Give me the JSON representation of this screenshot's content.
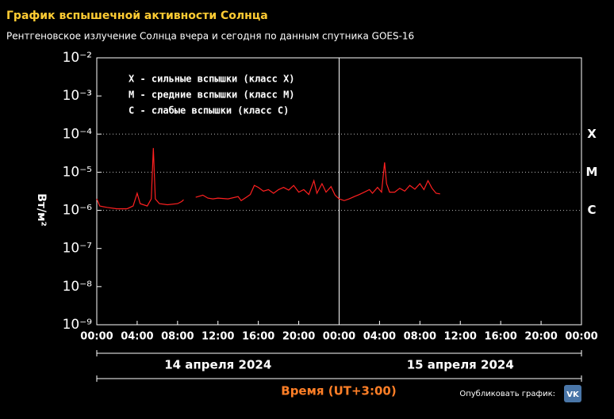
{
  "chart_data": {
    "type": "line",
    "title": "График вспышечной активности Солнца",
    "subtitle": "Рентгеновское излучение Солнца вчера и сегодня по данным спутника GOES-16",
    "ylabel": "Вт/м²",
    "xlabel": "Время (UT+3:00)",
    "log_scale": true,
    "ylim": [
      1e-09,
      0.01
    ],
    "yticks": [
      {
        "value": 1e-09,
        "label": "10⁻⁹"
      },
      {
        "value": 1e-08,
        "label": "10⁻⁸"
      },
      {
        "value": 1e-07,
        "label": "10⁻⁷"
      },
      {
        "value": 1e-06,
        "label": "10⁻⁶"
      },
      {
        "value": 1e-05,
        "label": "10⁻⁵"
      },
      {
        "value": 0.0001,
        "label": "10⁻⁴"
      },
      {
        "value": 0.001,
        "label": "10⁻³"
      },
      {
        "value": 0.01,
        "label": "10⁻²"
      }
    ],
    "xlim": [
      0,
      48
    ],
    "xticks": [
      {
        "value": 0,
        "label": "00:00"
      },
      {
        "value": 4,
        "label": "04:00"
      },
      {
        "value": 8,
        "label": "08:00"
      },
      {
        "value": 12,
        "label": "12:00"
      },
      {
        "value": 16,
        "label": "16:00"
      },
      {
        "value": 20,
        "label": "20:00"
      },
      {
        "value": 24,
        "label": "00:00"
      },
      {
        "value": 28,
        "label": "04:00"
      },
      {
        "value": 32,
        "label": "08:00"
      },
      {
        "value": 36,
        "label": "12:00"
      },
      {
        "value": 40,
        "label": "16:00"
      },
      {
        "value": 44,
        "label": "20:00"
      },
      {
        "value": 48,
        "label": "00:00"
      }
    ],
    "day_boundary": 24,
    "days": [
      "14 апреля 2024",
      "15 апреля 2024"
    ],
    "class_labels": [
      {
        "value": 0.0001,
        "label": "X"
      },
      {
        "value": 1e-05,
        "label": "M"
      },
      {
        "value": 1e-06,
        "label": "C"
      }
    ],
    "annotations": [
      "X - сильные вспышки (класс X)",
      "M - средние вспышки (класс M)",
      "C - слабые вспышки (класс C)"
    ],
    "series": [
      {
        "color": "#ff2020",
        "x": [
          0,
          0.3,
          1,
          2,
          3,
          3.6,
          4,
          4.3,
          5,
          5.4,
          5.6,
          5.8,
          6.2,
          7,
          8,
          8.4,
          8.6,
          9.2,
          9.8,
          10.5,
          11,
          11.5,
          12,
          13,
          14,
          14.3,
          14.8,
          15.2,
          15.6,
          16,
          16.5,
          17,
          17.5,
          18,
          18.5,
          19,
          19.5,
          20,
          20.5,
          21,
          21.5,
          21.8,
          22.3,
          22.7,
          23.2,
          23.6,
          24,
          24.5,
          25,
          25.5,
          26,
          26.5,
          27,
          27.3,
          27.8,
          28.2,
          28.5,
          28.7,
          29,
          29.5,
          30,
          30.5,
          31,
          31.5,
          32,
          32.4,
          32.8,
          33.2,
          33.6,
          34
        ],
        "values": [
          2e-06,
          1.3e-06,
          1.2e-06,
          1.1e-06,
          1.1e-06,
          1.3e-06,
          2.8e-06,
          1.5e-06,
          1.3e-06,
          2e-06,
          4.3e-05,
          2e-06,
          1.5e-06,
          1.4e-06,
          1.5e-06,
          1.7e-06,
          1.9e-06,
          null,
          2.2e-06,
          2.5e-06,
          2.1e-06,
          2e-06,
          2.1e-06,
          2e-06,
          2.3e-06,
          1.8e-06,
          2.2e-06,
          2.6e-06,
          4.5e-06,
          4e-06,
          3.2e-06,
          3.5e-06,
          2.8e-06,
          3.5e-06,
          4e-06,
          3.4e-06,
          4.5e-06,
          3e-06,
          3.5e-06,
          2.6e-06,
          6e-06,
          2.8e-06,
          5e-06,
          3e-06,
          4.2e-06,
          2.5e-06,
          2e-06,
          1.8e-06,
          2e-06,
          2.3e-06,
          2.6e-06,
          3e-06,
          3.5e-06,
          2.8e-06,
          4e-06,
          3e-06,
          1.8e-05,
          5e-06,
          3e-06,
          3e-06,
          3.8e-06,
          3.2e-06,
          4.5e-06,
          3.6e-06,
          5e-06,
          3.5e-06,
          6e-06,
          3.8e-06,
          2.8e-06,
          2.7e-06
        ]
      }
    ]
  },
  "footer": {
    "publish": "Опубликовать график:",
    "vk": "VK"
  }
}
